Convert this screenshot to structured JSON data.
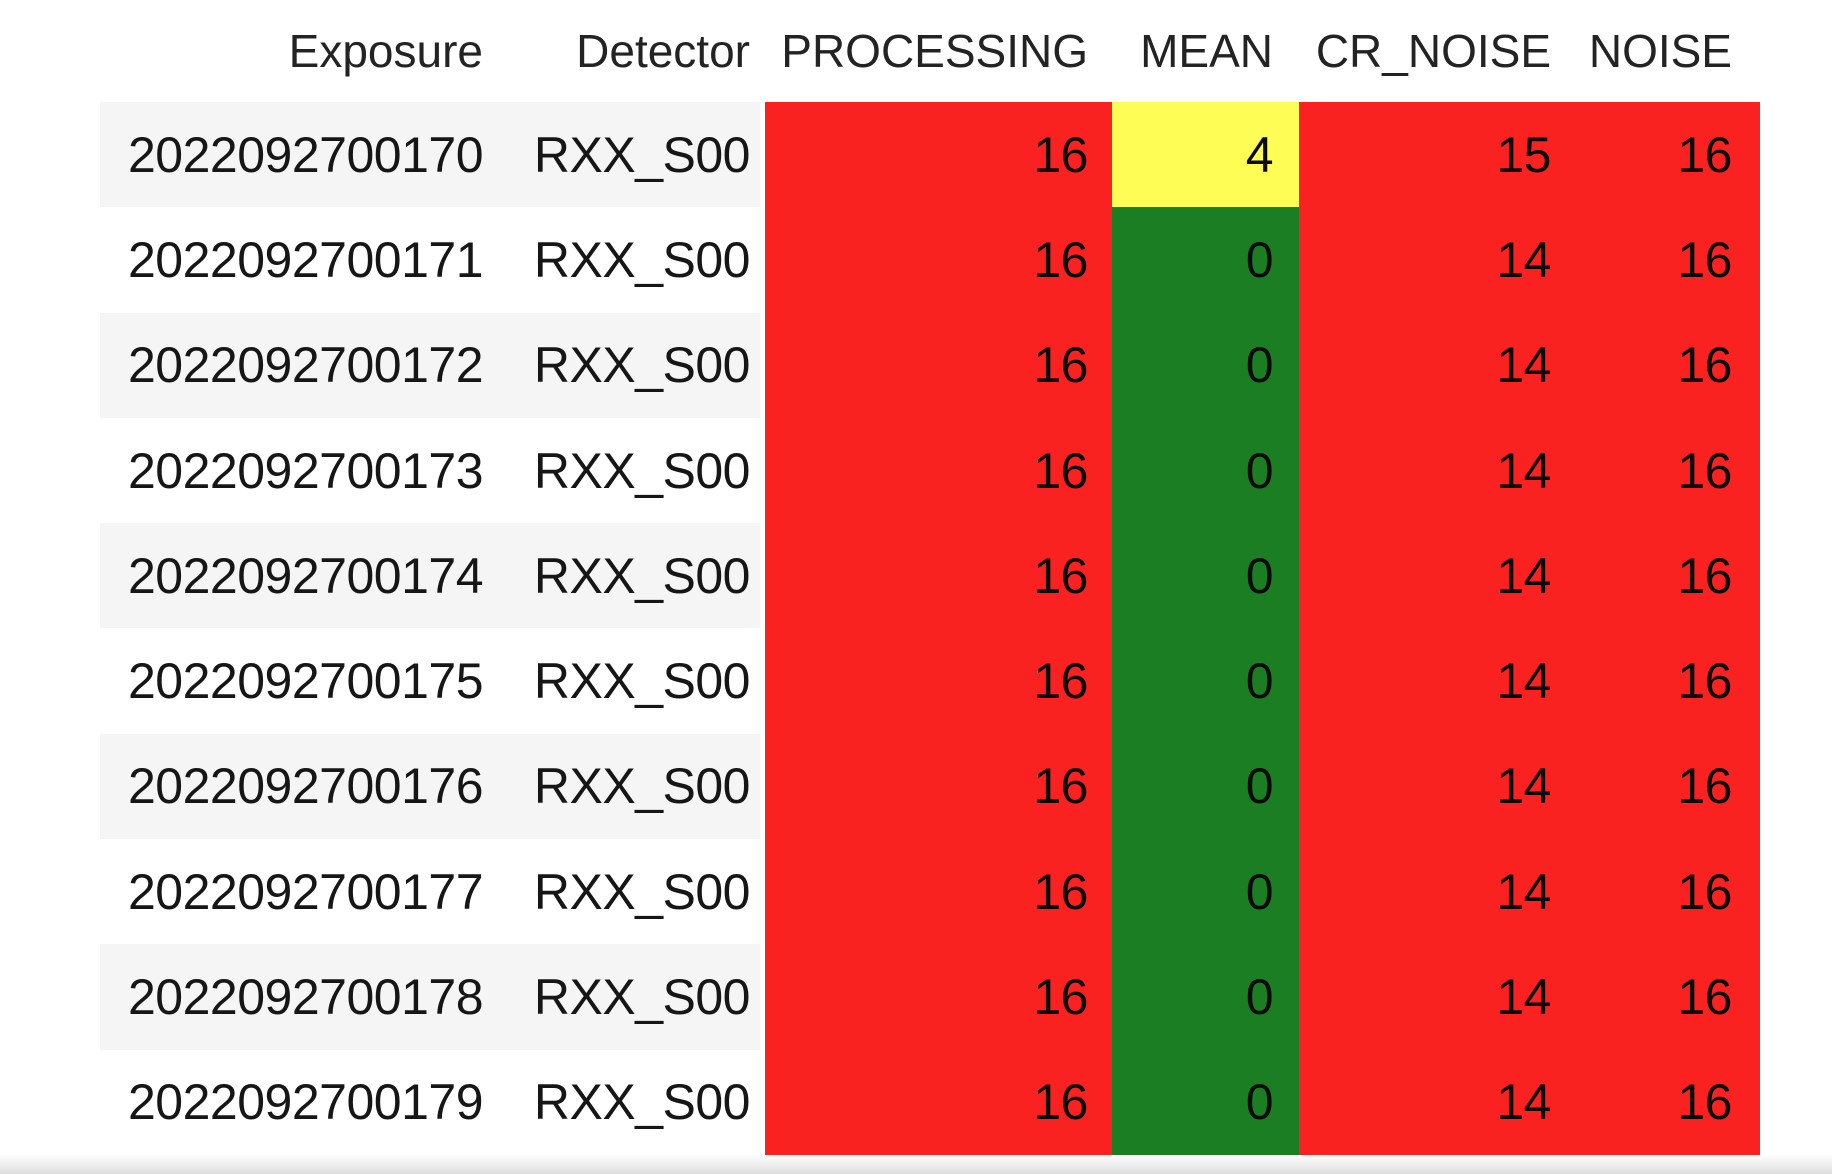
{
  "table": {
    "columns": [
      {
        "key": "exposure",
        "label": "Exposure"
      },
      {
        "key": "detector",
        "label": "Detector"
      },
      {
        "key": "processing",
        "label": "PROCESSING"
      },
      {
        "key": "mean",
        "label": "MEAN"
      },
      {
        "key": "cr_noise",
        "label": "CR_NOISE"
      },
      {
        "key": "noise",
        "label": "NOISE"
      }
    ],
    "rows": [
      {
        "exposure": "2022092700170",
        "detector": "RXX_S00",
        "processing": "16",
        "mean": "4",
        "cr_noise": "15",
        "noise": "16",
        "cell_colors": {
          "processing": "red",
          "mean": "yellow",
          "cr_noise": "red",
          "noise": "red"
        }
      },
      {
        "exposure": "2022092700171",
        "detector": "RXX_S00",
        "processing": "16",
        "mean": "0",
        "cr_noise": "14",
        "noise": "16",
        "cell_colors": {
          "processing": "red",
          "mean": "green",
          "cr_noise": "red",
          "noise": "red"
        }
      },
      {
        "exposure": "2022092700172",
        "detector": "RXX_S00",
        "processing": "16",
        "mean": "0",
        "cr_noise": "14",
        "noise": "16",
        "cell_colors": {
          "processing": "red",
          "mean": "green",
          "cr_noise": "red",
          "noise": "red"
        }
      },
      {
        "exposure": "2022092700173",
        "detector": "RXX_S00",
        "processing": "16",
        "mean": "0",
        "cr_noise": "14",
        "noise": "16",
        "cell_colors": {
          "processing": "red",
          "mean": "green",
          "cr_noise": "red",
          "noise": "red"
        }
      },
      {
        "exposure": "2022092700174",
        "detector": "RXX_S00",
        "processing": "16",
        "mean": "0",
        "cr_noise": "14",
        "noise": "16",
        "cell_colors": {
          "processing": "red",
          "mean": "green",
          "cr_noise": "red",
          "noise": "red"
        }
      },
      {
        "exposure": "2022092700175",
        "detector": "RXX_S00",
        "processing": "16",
        "mean": "0",
        "cr_noise": "14",
        "noise": "16",
        "cell_colors": {
          "processing": "red",
          "mean": "green",
          "cr_noise": "red",
          "noise": "red"
        }
      },
      {
        "exposure": "2022092700176",
        "detector": "RXX_S00",
        "processing": "16",
        "mean": "0",
        "cr_noise": "14",
        "noise": "16",
        "cell_colors": {
          "processing": "red",
          "mean": "green",
          "cr_noise": "red",
          "noise": "red"
        }
      },
      {
        "exposure": "2022092700177",
        "detector": "RXX_S00",
        "processing": "16",
        "mean": "0",
        "cr_noise": "14",
        "noise": "16",
        "cell_colors": {
          "processing": "red",
          "mean": "green",
          "cr_noise": "red",
          "noise": "red"
        }
      },
      {
        "exposure": "2022092700178",
        "detector": "RXX_S00",
        "processing": "16",
        "mean": "0",
        "cr_noise": "14",
        "noise": "16",
        "cell_colors": {
          "processing": "red",
          "mean": "green",
          "cr_noise": "red",
          "noise": "red"
        }
      },
      {
        "exposure": "2022092700179",
        "detector": "RXX_S00",
        "processing": "16",
        "mean": "0",
        "cr_noise": "14",
        "noise": "16",
        "cell_colors": {
          "processing": "red",
          "mean": "green",
          "cr_noise": "red",
          "noise": "red"
        }
      }
    ]
  },
  "colors": {
    "red": "#f92220",
    "yellow": "#fdfd55",
    "green": "#1c7e23",
    "row_alt": "#f5f5f5"
  }
}
